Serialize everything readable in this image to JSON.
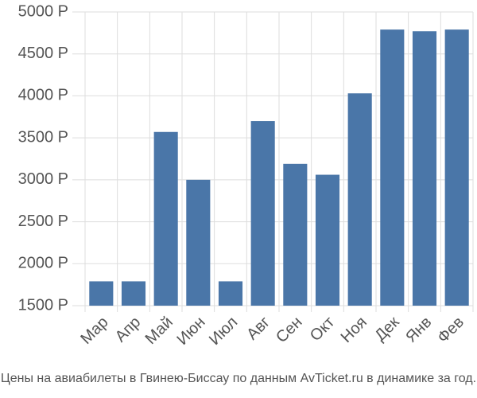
{
  "chart_data": {
    "type": "bar",
    "caption": "Цены на авиабилеты в Гвинею-Биссау по данным AvTicket.ru в динамике за год.",
    "categories": [
      "Мар",
      "Апр",
      "Май",
      "Июн",
      "Июл",
      "Авг",
      "Сен",
      "Окт",
      "Ноя",
      "Дек",
      "Янв",
      "Фев"
    ],
    "values": [
      1790,
      1790,
      3570,
      3000,
      1790,
      3700,
      3190,
      3060,
      4030,
      4790,
      4770,
      4790
    ],
    "color": "#4a76a8",
    "ylim": [
      1500,
      5000
    ],
    "yticks": [
      {
        "value": 1500,
        "label": "1500 Р"
      },
      {
        "value": 2000,
        "label": "2000 Р"
      },
      {
        "value": 2500,
        "label": "2500 Р"
      },
      {
        "value": 3000,
        "label": "3000 Р"
      },
      {
        "value": 3500,
        "label": "3500 Р"
      },
      {
        "value": 4000,
        "label": "4000 Р"
      },
      {
        "value": 4500,
        "label": "4500 Р"
      },
      {
        "value": 5000,
        "label": "5000 Р"
      }
    ],
    "grid": true
  }
}
